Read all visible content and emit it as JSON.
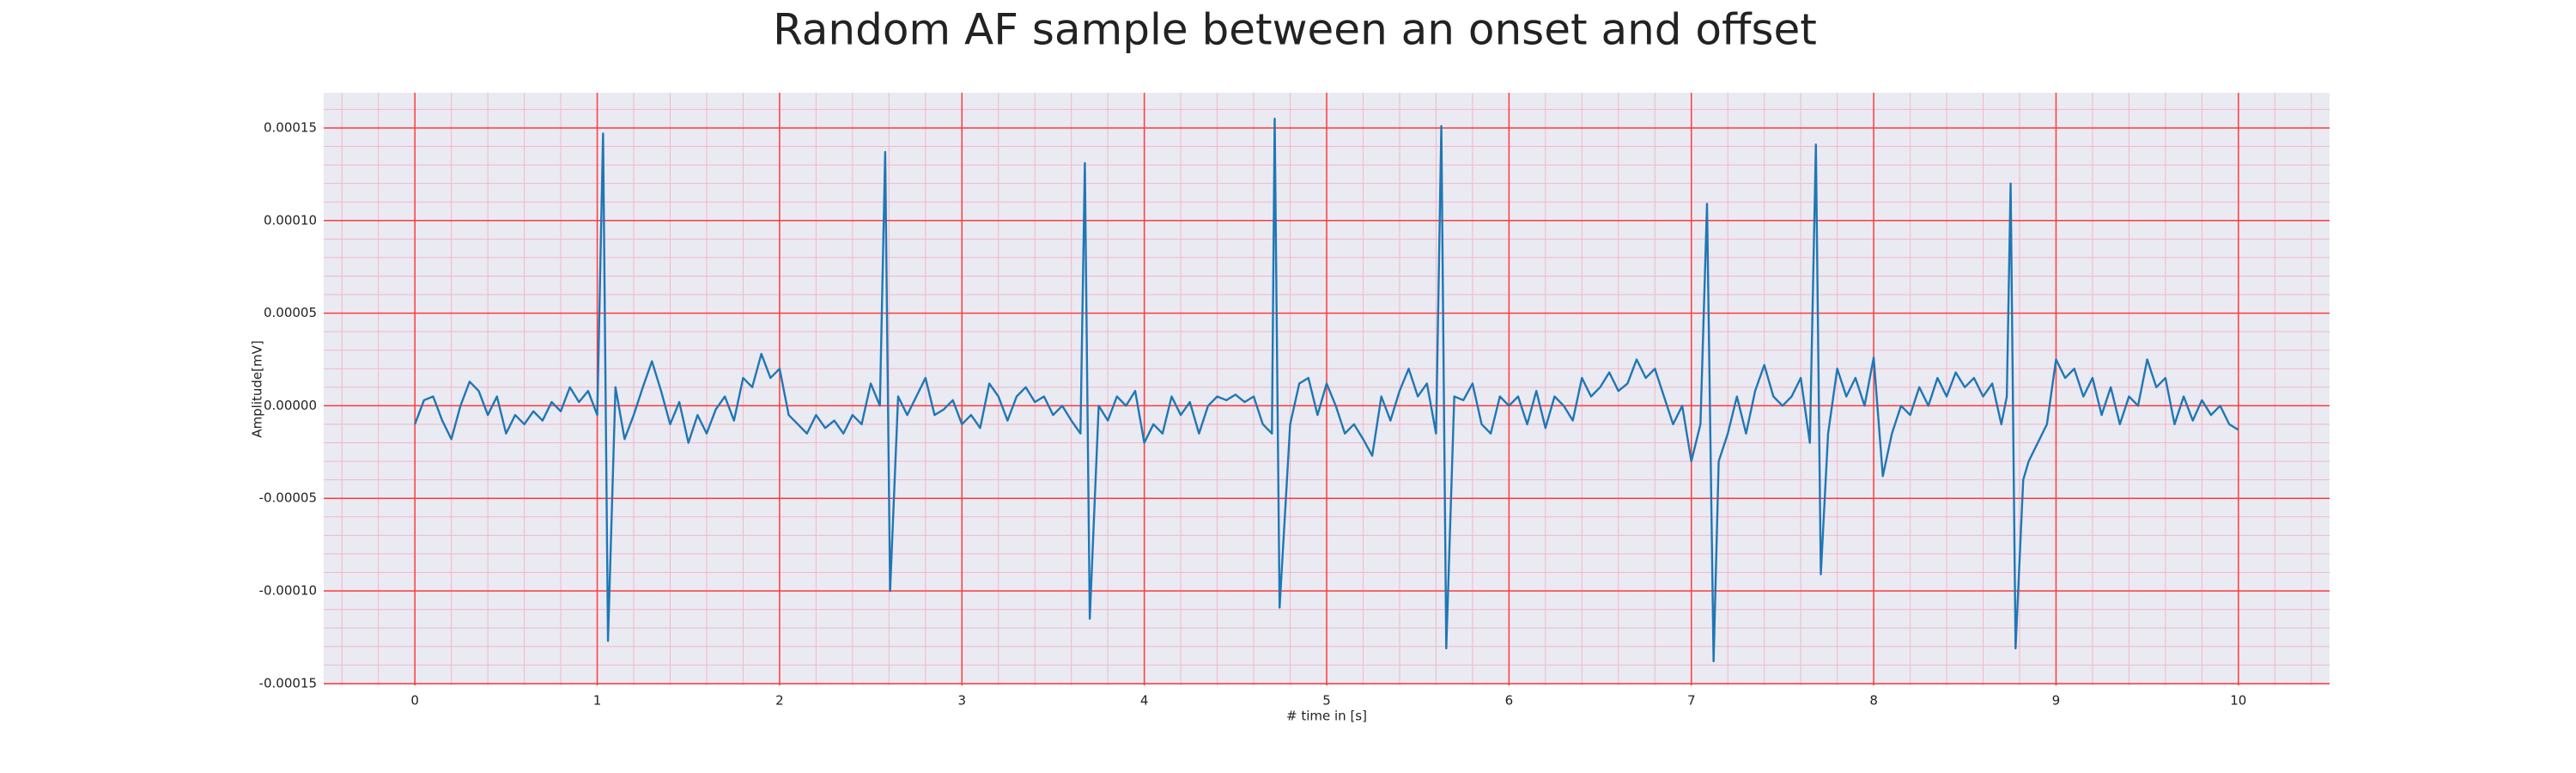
{
  "chart_data": {
    "type": "line",
    "title": "Random AF sample between an onset and offset",
    "x_label": "# time in [s]",
    "y_label": "Amplitude[mV]",
    "xlim": [
      -0.5,
      10.5
    ],
    "xticks": [
      0,
      1,
      2,
      3,
      4,
      5,
      6,
      7,
      8,
      9,
      10
    ],
    "ylim": [
      -0.000151,
      0.000169
    ],
    "yticks": [
      {
        "value": -0.00015,
        "label": "-0.00015"
      },
      {
        "value": -0.0001,
        "label": "-0.00010"
      },
      {
        "value": -5e-05,
        "label": "-0.00005"
      },
      {
        "value": 0,
        "label": "0.00000"
      },
      {
        "value": 5e-05,
        "label": "0.00005"
      },
      {
        "value": 0.0001,
        "label": "0.00010"
      },
      {
        "value": 0.00015,
        "label": "0.00015"
      }
    ],
    "grid": true,
    "minor_grid": true,
    "grid_color": "#ff3b3b",
    "minor_grid_color": "#f4b6c8",
    "background": "#eaeaf2",
    "series": [
      {
        "color": "#1f77b4",
        "x": [
          0,
          0.05,
          0.1,
          0.15,
          0.2,
          0.25,
          0.3,
          0.35,
          0.4,
          0.45,
          0.5,
          0.55,
          0.6,
          0.65,
          0.7,
          0.75,
          0.8,
          0.85,
          0.9,
          0.95,
          1.0,
          1.032,
          1.059,
          1.1,
          1.15,
          1.2,
          1.25,
          1.3,
          1.35,
          1.4,
          1.45,
          1.5,
          1.55,
          1.6,
          1.65,
          1.7,
          1.75,
          1.8,
          1.85,
          1.9,
          1.95,
          2.0,
          2.05,
          2.1,
          2.15,
          2.2,
          2.25,
          2.3,
          2.35,
          2.4,
          2.45,
          2.5,
          2.55,
          2.579,
          2.606,
          2.65,
          2.7,
          2.75,
          2.8,
          2.85,
          2.9,
          2.95,
          3.0,
          3.05,
          3.1,
          3.15,
          3.2,
          3.25,
          3.3,
          3.35,
          3.4,
          3.45,
          3.5,
          3.55,
          3.6,
          3.65,
          3.674,
          3.701,
          3.75,
          3.8,
          3.85,
          3.9,
          3.95,
          4.0,
          4.05,
          4.1,
          4.15,
          4.2,
          4.25,
          4.3,
          4.35,
          4.4,
          4.45,
          4.5,
          4.55,
          4.6,
          4.65,
          4.7,
          4.715,
          4.742,
          4.8,
          4.85,
          4.9,
          4.95,
          5.0,
          5.05,
          5.1,
          5.15,
          5.2,
          5.25,
          5.3,
          5.35,
          5.4,
          5.45,
          5.5,
          5.55,
          5.6,
          5.629,
          5.656,
          5.7,
          5.75,
          5.8,
          5.85,
          5.9,
          5.95,
          6.0,
          6.05,
          6.1,
          6.15,
          6.2,
          6.25,
          6.3,
          6.35,
          6.4,
          6.45,
          6.5,
          6.55,
          6.6,
          6.65,
          6.7,
          6.75,
          6.8,
          6.85,
          6.9,
          6.95,
          7.0,
          7.05,
          7.086,
          7.122,
          7.15,
          7.2,
          7.25,
          7.3,
          7.35,
          7.4,
          7.45,
          7.5,
          7.55,
          7.6,
          7.65,
          7.683,
          7.71,
          7.75,
          7.8,
          7.85,
          7.9,
          7.95,
          8.0,
          8.05,
          8.1,
          8.15,
          8.2,
          8.25,
          8.3,
          8.35,
          8.4,
          8.45,
          8.5,
          8.55,
          8.6,
          8.65,
          8.7,
          8.73,
          8.751,
          8.778,
          8.82,
          8.85,
          8.9,
          8.95,
          9.0,
          9.05,
          9.1,
          9.15,
          9.2,
          9.25,
          9.3,
          9.35,
          9.4,
          9.45,
          9.5,
          9.55,
          9.6,
          9.65,
          9.7,
          9.75,
          9.8,
          9.85,
          9.9,
          9.95,
          10.0
        ],
        "values": [
          -1e-05,
          3e-06,
          5e-06,
          -8e-06,
          -1.8e-05,
          0,
          1.3e-05,
          8e-06,
          -5e-06,
          5e-06,
          -1.5e-05,
          -5e-06,
          -1e-05,
          -3e-06,
          -8e-06,
          2e-06,
          -3e-06,
          1e-05,
          2e-06,
          8e-06,
          -5e-06,
          0.000147,
          -0.000127,
          1e-05,
          -1.8e-05,
          -5e-06,
          1e-05,
          2.4e-05,
          8e-06,
          -1e-05,
          2e-06,
          -2e-05,
          -5e-06,
          -1.5e-05,
          -2e-06,
          5e-06,
          -8e-06,
          1.5e-05,
          1e-05,
          2.8e-05,
          1.5e-05,
          2e-05,
          -5e-06,
          -1e-05,
          -1.5e-05,
          -5e-06,
          -1.2e-05,
          -8e-06,
          -1.5e-05,
          -5e-06,
          -1e-05,
          1.2e-05,
          0,
          0.000137,
          -0.0001,
          5e-06,
          -5e-06,
          5e-06,
          1.5e-05,
          -5e-06,
          -2e-06,
          3e-06,
          -1e-05,
          -5e-06,
          -1.2e-05,
          1.2e-05,
          5e-06,
          -8e-06,
          5e-06,
          1e-05,
          2e-06,
          5e-06,
          -5e-06,
          0,
          -8e-06,
          -1.5e-05,
          0.000131,
          -0.000115,
          0,
          -8e-06,
          5e-06,
          0,
          8e-06,
          -2e-05,
          -1e-05,
          -1.5e-05,
          5e-06,
          -5e-06,
          2e-06,
          -1.5e-05,
          0,
          5e-06,
          3e-06,
          6e-06,
          2e-06,
          5e-06,
          -1e-05,
          -1.5e-05,
          0.000155,
          -0.000109,
          -1e-05,
          1.2e-05,
          1.5e-05,
          -5e-06,
          1.2e-05,
          0,
          -1.5e-05,
          -1e-05,
          -1.8e-05,
          -2.7e-05,
          5e-06,
          -8e-06,
          8e-06,
          2e-05,
          5e-06,
          1.2e-05,
          -1.5e-05,
          0.000151,
          -0.000131,
          5e-06,
          3e-06,
          1.2e-05,
          -1e-05,
          -1.5e-05,
          5e-06,
          0,
          5e-06,
          -1e-05,
          8e-06,
          -1.2e-05,
          5e-06,
          0,
          -8e-06,
          1.5e-05,
          5e-06,
          1e-05,
          1.8e-05,
          8e-06,
          1.2e-05,
          2.5e-05,
          1.5e-05,
          2e-05,
          5e-06,
          -1e-05,
          0,
          -3e-05,
          -1e-05,
          0.000109,
          -0.000138,
          -3e-05,
          -1.5e-05,
          5e-06,
          -1.5e-05,
          8e-06,
          2.2e-05,
          5e-06,
          0,
          5e-06,
          1.5e-05,
          -2e-05,
          0.000141,
          -9.1e-05,
          -1.5e-05,
          2e-05,
          5e-06,
          1.5e-05,
          0,
          2.6e-05,
          -3.8e-05,
          -1.5e-05,
          0,
          -5e-06,
          1e-05,
          0,
          1.5e-05,
          5e-06,
          1.8e-05,
          1e-05,
          1.5e-05,
          5e-06,
          1.2e-05,
          -1e-05,
          5e-06,
          0.00012,
          -0.000131,
          -4e-05,
          -3e-05,
          -2e-05,
          -1e-05,
          2.5e-05,
          1.5e-05,
          2e-05,
          5e-06,
          1.5e-05,
          -5e-06,
          1e-05,
          -1e-05,
          5e-06,
          0,
          2.5e-05,
          1e-05,
          1.5e-05,
          -1e-05,
          5e-06,
          -8e-06,
          3e-06,
          -5e-06,
          0,
          -1e-05,
          -1.3e-05
        ]
      }
    ]
  }
}
